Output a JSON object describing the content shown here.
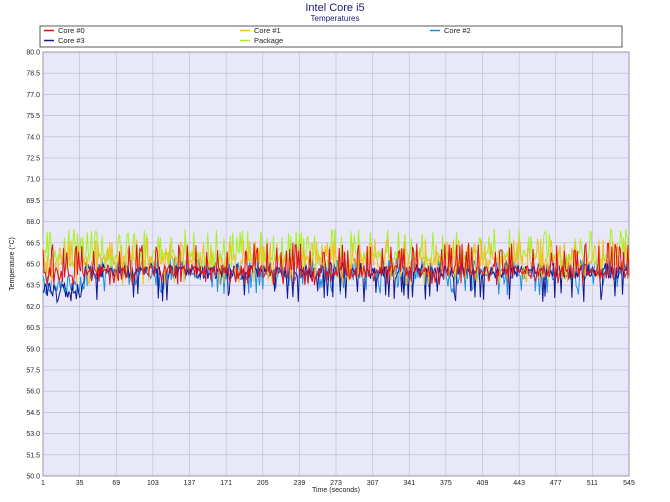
{
  "chart_data": {
    "type": "line",
    "title": "Intel Core i5",
    "subtitle": "Temperatures",
    "xlabel": "Time (seconds)",
    "ylabel": "Temperature (°C)",
    "xlim": [
      1,
      545
    ],
    "ylim": [
      50.0,
      80.0
    ],
    "x_ticks": [
      "1",
      "35",
      "69",
      "103",
      "137",
      "171",
      "205",
      "239",
      "273",
      "307",
      "341",
      "375",
      "409",
      "443",
      "477",
      "511",
      "545"
    ],
    "y_ticks": [
      "50.0",
      "51.5",
      "53.0",
      "54.5",
      "56.0",
      "57.5",
      "59.0",
      "60.5",
      "62.0",
      "63.5",
      "65.0",
      "66.5",
      "68.0",
      "69.5",
      "71.0",
      "72.5",
      "74.0",
      "75.5",
      "77.0",
      "78.5",
      "80.0"
    ],
    "grid": true,
    "legend_position": "top",
    "background_color": "#e8e8f8",
    "grid_color": "#b8b8d8",
    "series": [
      {
        "name": "Core #0",
        "color": "#e0101a",
        "base": 64.5,
        "low": 63.5,
        "high": 66.5
      },
      {
        "name": "Core #1",
        "color": "#f0c020",
        "base": 65.2,
        "low": 63.5,
        "high": 66.8
      },
      {
        "name": "Core #2",
        "color": "#1e90e0",
        "base": 64.3,
        "low": 62.8,
        "high": 65.5
      },
      {
        "name": "Core #3",
        "color": "#101a90",
        "base": 64.4,
        "low": 62.3,
        "high": 65.2
      },
      {
        "name": "Package",
        "color": "#a8f020",
        "base": 65.6,
        "low": 64.5,
        "high": 67.5
      }
    ]
  }
}
